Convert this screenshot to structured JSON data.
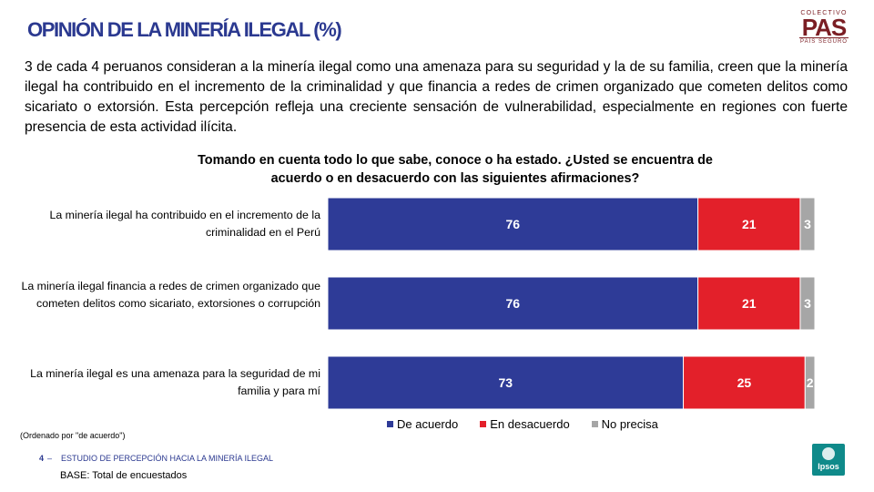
{
  "header": {
    "title": "OPINIÓN DE LA MINERÍA ILEGAL (%)",
    "logo": {
      "top": "COLECTIVO",
      "main": "PAS",
      "bottom": "PAÍS SEGURO"
    }
  },
  "intro": "3 de cada 4 peruanos consideran a la minería ilegal como una amenaza para su seguridad y la de su familia, creen que la minería ilegal ha contribuido en el incremento de la criminalidad y que financia a redes de crimen organizado que cometen delitos como sicariato o extorsión. Esta percepción refleja una creciente sensación de vulnerabilidad, especialmente en regiones con fuerte presencia de esta actividad ilícita.",
  "chart_data": {
    "type": "bar",
    "orientation": "horizontal",
    "stacked": true,
    "title": "Tomando en cuenta todo lo que sabe, conoce o ha estado. ¿Usted se encuentra de acuerdo o en desacuerdo con las siguientes afirmaciones?",
    "categories": [
      "La minería ilegal ha contribuido en el incremento de la criminalidad en el Perú",
      "La minería ilegal financia a redes de crimen organizado que cometen delitos como sicariato, extorsiones o corrupción",
      "La minería ilegal es una amenaza para la seguridad de mi familia y para mí"
    ],
    "series": [
      {
        "name": "De acuerdo",
        "color": "#2e3b97",
        "values": [
          76,
          76,
          73
        ]
      },
      {
        "name": "En desacuerdo",
        "color": "#e3202a",
        "values": [
          21,
          21,
          25
        ]
      },
      {
        "name": "No precisa",
        "color": "#a6a6a6",
        "values": [
          3,
          3,
          2
        ]
      }
    ],
    "xlim": [
      0,
      100
    ],
    "legend": "bottom"
  },
  "footer": {
    "note": "(Ordenado por \"de acuerdo\")",
    "page": "4",
    "dash": "–",
    "study": "ESTUDIO DE PERCEPCIÓN HACIA LA MINERÍA ILEGAL",
    "base": "BASE: Total de encuestados",
    "brand": "Ipsos"
  }
}
